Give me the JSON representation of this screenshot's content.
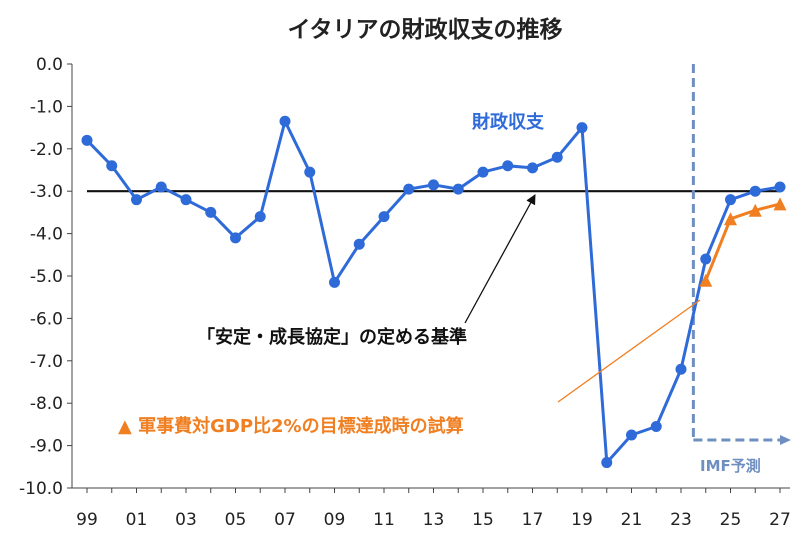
{
  "chart_data": {
    "type": "line",
    "title": "イタリアの財政収支の推移",
    "xlabel": "",
    "ylabel": "",
    "ylim": [
      -10,
      0
    ],
    "y_ticks": [
      "0.0",
      "-1.0",
      "-2.0",
      "-3.0",
      "-4.0",
      "-5.0",
      "-6.0",
      "-7.0",
      "-8.0",
      "-9.0",
      "-10.0"
    ],
    "x_tick_labels": [
      "99",
      "01",
      "03",
      "05",
      "07",
      "09",
      "11",
      "13",
      "15",
      "17",
      "19",
      "21",
      "23",
      "25",
      "27"
    ],
    "x_tick_years": [
      1999,
      2001,
      2003,
      2005,
      2007,
      2009,
      2011,
      2013,
      2015,
      2017,
      2019,
      2021,
      2023,
      2025,
      2027
    ],
    "grid": false,
    "series": [
      {
        "name": "財政収支",
        "color": "#2F6BD8",
        "marker": "circle",
        "x": [
          1999,
          2000,
          2001,
          2002,
          2003,
          2004,
          2005,
          2006,
          2007,
          2008,
          2009,
          2010,
          2011,
          2012,
          2013,
          2014,
          2015,
          2016,
          2017,
          2018,
          2019,
          2020,
          2021,
          2022,
          2023,
          2024,
          2025,
          2026,
          2027
        ],
        "values": [
          -1.8,
          -2.4,
          -3.2,
          -2.9,
          -3.2,
          -3.5,
          -4.1,
          -3.6,
          -1.35,
          -2.55,
          -5.15,
          -4.25,
          -3.6,
          -2.95,
          -2.85,
          -2.95,
          -2.55,
          -2.4,
          -2.45,
          -2.2,
          -1.5,
          -9.4,
          -8.75,
          -8.55,
          -7.2,
          -4.6,
          -3.2,
          -3.0,
          -2.9
        ]
      },
      {
        "name": "▲ 軍事費対GDP比2%の目標達成時の試算",
        "color": "#F07F22",
        "marker": "triangle",
        "x": [
          2024,
          2025,
          2026,
          2027
        ],
        "values": [
          -5.1,
          -3.65,
          -3.45,
          -3.3
        ]
      }
    ],
    "reference_line": {
      "value": -3.0,
      "label": "「安定・成長協定」の定める基準",
      "color": "#111111"
    },
    "forecast": {
      "start_year": 2023.5,
      "label": "IMF予測",
      "color": "#6E8FC0"
    },
    "annotations": {
      "fiscal_label": "財政収支",
      "target_label": "「安定・成長協定」の定める基準",
      "military_label": "▲ 軍事費対GDP比2%の目標達成時の試算",
      "imf_label": "IMF予測"
    }
  }
}
